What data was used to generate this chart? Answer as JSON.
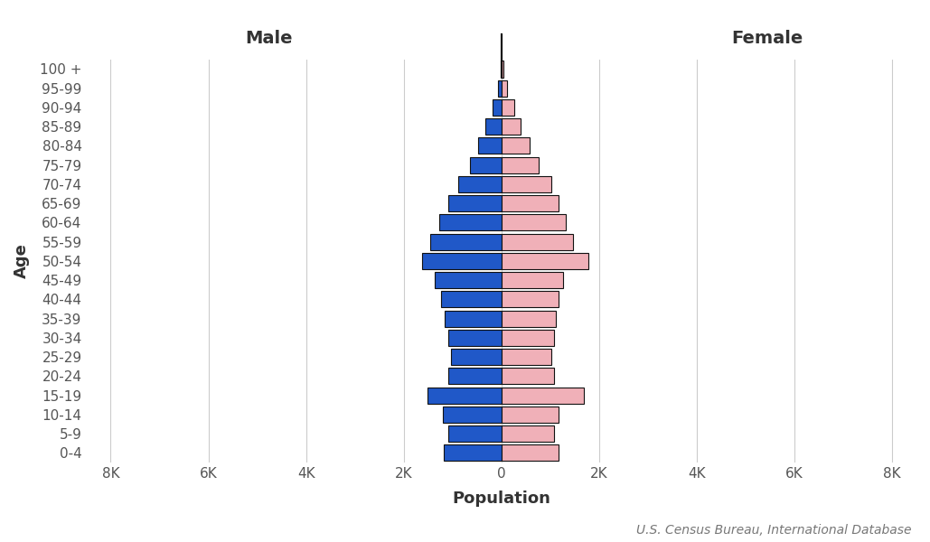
{
  "age_groups": [
    "100 +",
    "95-99",
    "90-94",
    "85-89",
    "80-84",
    "75-79",
    "70-74",
    "65-69",
    "60-64",
    "55-59",
    "50-54",
    "45-49",
    "40-44",
    "35-39",
    "30-34",
    "25-29",
    "20-24",
    "15-19",
    "10-14",
    "5-9",
    "0-4"
  ],
  "male": [
    18,
    70,
    185,
    320,
    475,
    640,
    880,
    1080,
    1280,
    1450,
    1620,
    1360,
    1240,
    1170,
    1090,
    1040,
    1090,
    1510,
    1200,
    1080,
    1180
  ],
  "female": [
    42,
    125,
    260,
    400,
    580,
    760,
    1020,
    1170,
    1310,
    1460,
    1780,
    1270,
    1170,
    1110,
    1070,
    1030,
    1080,
    1680,
    1180,
    1080,
    1175
  ],
  "male_color": "#2058c8",
  "female_color": "#f0b0b8",
  "male_label": "Male",
  "female_label": "Female",
  "xlabel": "Population",
  "ylabel": "Age",
  "xlim": 8500,
  "source": "U.S. Census Bureau, International Database",
  "background_color": "#ffffff",
  "grid_color": "#cccccc",
  "bar_edgecolor": "#111111",
  "bar_linewidth": 0.8,
  "label_fontsize": 13,
  "tick_fontsize": 11,
  "source_fontsize": 10
}
